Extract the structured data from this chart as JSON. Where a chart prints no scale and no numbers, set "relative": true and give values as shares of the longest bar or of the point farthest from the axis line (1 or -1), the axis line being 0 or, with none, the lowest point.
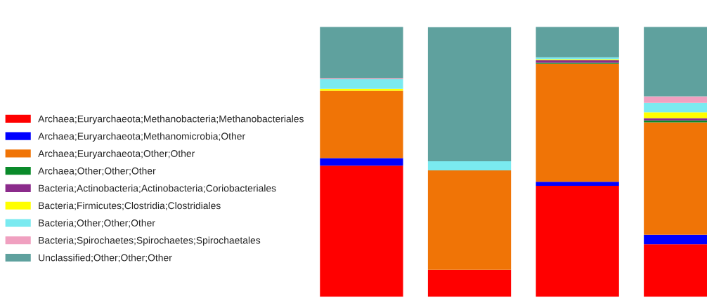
{
  "chart_data": {
    "type": "bar",
    "stacked": true,
    "relative": true,
    "legend": "left",
    "categories": [
      null,
      null,
      null,
      null
    ],
    "series": [
      {
        "name": "Archaea;Euryarchaeota;Methanobacteria;Methanobacteriales",
        "color": "#ff0000",
        "values": [
          0.486,
          0.1,
          0.411,
          0.195
        ]
      },
      {
        "name": "Archaea;Euryarchaeota;Methanomicrobia;Other",
        "color": "#0000ff",
        "values": [
          0.028,
          0,
          0.015,
          0.035
        ]
      },
      {
        "name": "Archaea;Euryarchaeota;Other;Other",
        "color": "#f07406",
        "values": [
          0.249,
          0.368,
          0.438,
          0.416
        ]
      },
      {
        "name": "Archaea;Other;Other;Other",
        "color": "#0a8a2a",
        "values": [
          0,
          0,
          0.003,
          0.007
        ]
      },
      {
        "name": "Bacteria;Actinobacteria;Actinobacteria;Coriobacteriales",
        "color": "#8b2b8b",
        "values": [
          0,
          0,
          0.009,
          0.009
        ]
      },
      {
        "name": "Bacteria;Firmicutes;Clostridia;Clostridiales",
        "color": "#ffff00",
        "values": [
          0.007,
          0,
          0.004,
          0.021
        ]
      },
      {
        "name": "Bacteria;Other;Other;Other",
        "color": "#7aeaf0",
        "values": [
          0.036,
          0.034,
          0.007,
          0.035
        ]
      },
      {
        "name": "Bacteria;Spirochaetes;Spirochaetes;Spirochaetales",
        "color": "#f0a0c0",
        "values": [
          0.004,
          0,
          0,
          0.024
        ]
      },
      {
        "name": "Unclassified;Other;Other;Other",
        "color": "#5fa19e",
        "values": [
          0.19,
          0.497,
          0.113,
          0.258
        ]
      }
    ]
  }
}
